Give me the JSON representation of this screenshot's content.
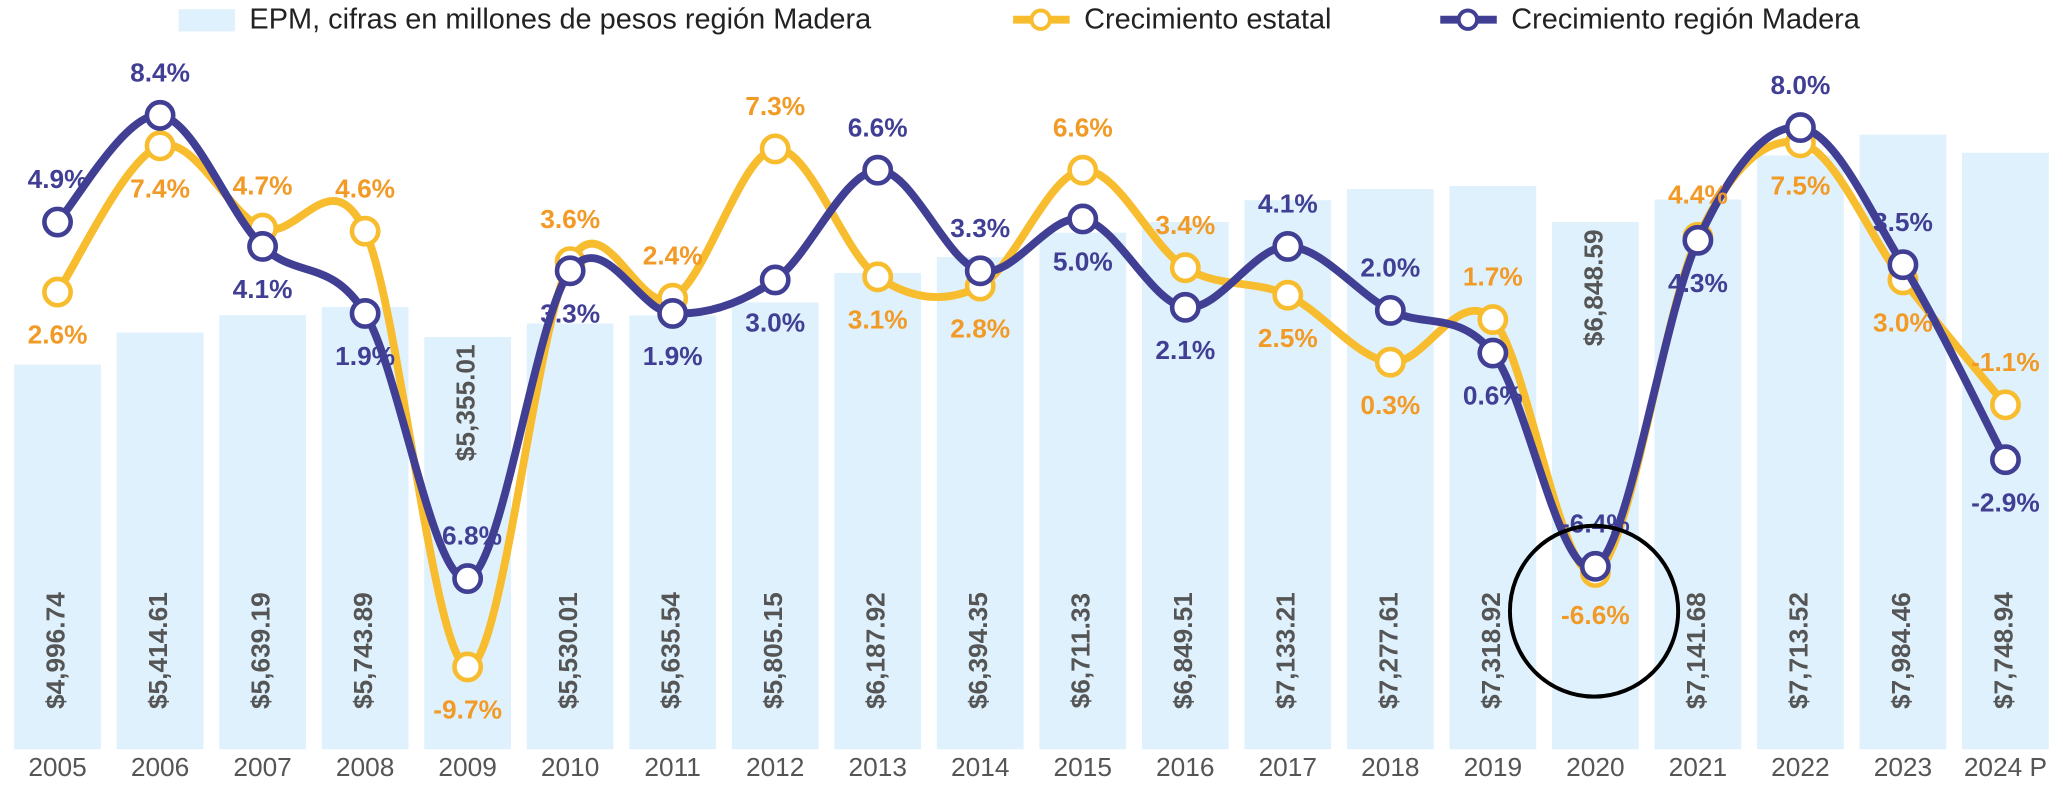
{
  "chart_data": {
    "type": "bar_line",
    "categories": [
      "2005",
      "2006",
      "2007",
      "2008",
      "2009",
      "2010",
      "2011",
      "2012",
      "2013",
      "2014",
      "2015",
      "2016",
      "2017",
      "2018",
      "2019",
      "2020",
      "2021",
      "2022",
      "2023",
      "2024 P"
    ],
    "ylim": [
      0,
      9700
    ],
    "y2lim": [
      -12.4,
      12.1
    ],
    "series": [
      {
        "name": "EPM, cifras en millones de pesos región Madera",
        "type": "bar",
        "color": "#dff1fc",
        "values": [
          4996.74,
          5414.61,
          5639.19,
          5743.89,
          5355.01,
          5530.01,
          5635.54,
          5805.15,
          6187.92,
          6394.35,
          6711.33,
          6849.51,
          7133.21,
          7277.61,
          7318.92,
          6848.59,
          7141.68,
          7713.52,
          7984.46,
          7748.94
        ],
        "value_labels": [
          "$4,996.74",
          "$5,414.61",
          "$5,639.19",
          "$5,743.89",
          "$5,355.01",
          "$5,530.01",
          "$5,635.54",
          "$5,805.15",
          "$6,187.92",
          "$6,394.35",
          "$6,711.33",
          "$6,849.51",
          "$7,133.21",
          "$7,277.61",
          "$7,318.92",
          "$6,848.59",
          "$7,141.68",
          "$7,713.52",
          "$7,984.46",
          "$7,748.94"
        ]
      },
      {
        "name": "Crecimiento estatal",
        "type": "line",
        "axis": "y2",
        "color": "#f8bd2e",
        "values": [
          2.6,
          7.4,
          4.7,
          4.6,
          -9.7,
          3.6,
          2.4,
          7.3,
          3.1,
          2.8,
          6.6,
          3.4,
          2.5,
          0.3,
          1.7,
          -6.6,
          4.4,
          7.5,
          3.0,
          -1.1
        ],
        "value_labels": [
          "2.6%",
          "7.4%",
          "4.7%",
          "4.6%",
          "-9.7%",
          "3.6%",
          "2.4%",
          "7.3%",
          "3.1%",
          "2.8%",
          "6.6%",
          "3.4%",
          "2.5%",
          "0.3%",
          "1.7%",
          "-6.6%",
          "4.4%",
          "7.5%",
          "3.0%",
          "-1.1%"
        ]
      },
      {
        "name": "Crecimiento región Madera",
        "type": "line",
        "axis": "y2",
        "color": "#413f94",
        "values": [
          4.9,
          8.4,
          4.1,
          1.9,
          -6.8,
          3.3,
          1.9,
          3.0,
          6.6,
          3.3,
          5.0,
          2.1,
          4.1,
          2.0,
          0.6,
          -6.4,
          4.3,
          8.0,
          3.5,
          -2.9
        ],
        "value_labels": [
          "4.9%",
          "8.4%",
          "4.1%",
          "1.9%",
          "-6.8%",
          "3.3%",
          "1.9%",
          "3.0%",
          "6.6%",
          "3.3%",
          "5.0%",
          "2.1%",
          "4.1%",
          "2.0%",
          "0.6%",
          "-6.4%",
          "4.3%",
          "8.0%",
          "3.5%",
          "-2.9%"
        ]
      }
    ]
  }
}
